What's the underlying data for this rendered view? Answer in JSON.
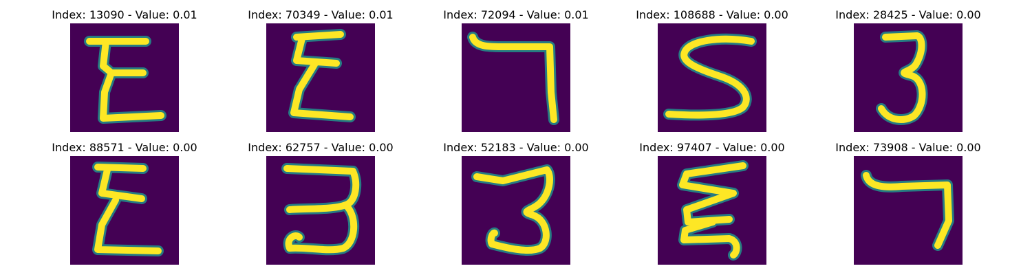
{
  "figure": {
    "background": "#ffffff",
    "colormap": "viridis",
    "colors": {
      "low": "#440154",
      "mid": "#21918c",
      "high": "#fde725"
    }
  },
  "panels": [
    {
      "title": "Index: 13090 - Value: 0.01",
      "glyph": "sigma-like"
    },
    {
      "title": "Index: 70349 - Value: 0.01",
      "glyph": "sigma-like"
    },
    {
      "title": "Index: 72094 - Value: 0.01",
      "glyph": "seven-like"
    },
    {
      "title": "Index: 108688 - Value: 0.00",
      "glyph": "s-like"
    },
    {
      "title": "Index: 28425 - Value: 0.00",
      "glyph": "three"
    },
    {
      "title": "Index: 88571 - Value: 0.00",
      "glyph": "sigma-like"
    },
    {
      "title": "Index: 62757 - Value: 0.00",
      "glyph": "three"
    },
    {
      "title": "Index: 52183 - Value: 0.00",
      "glyph": "three"
    },
    {
      "title": "Index: 97407 - Value: 0.00",
      "glyph": "sigma-like"
    },
    {
      "title": "Index: 73908 - Value: 0.00",
      "glyph": "seven-like"
    }
  ]
}
